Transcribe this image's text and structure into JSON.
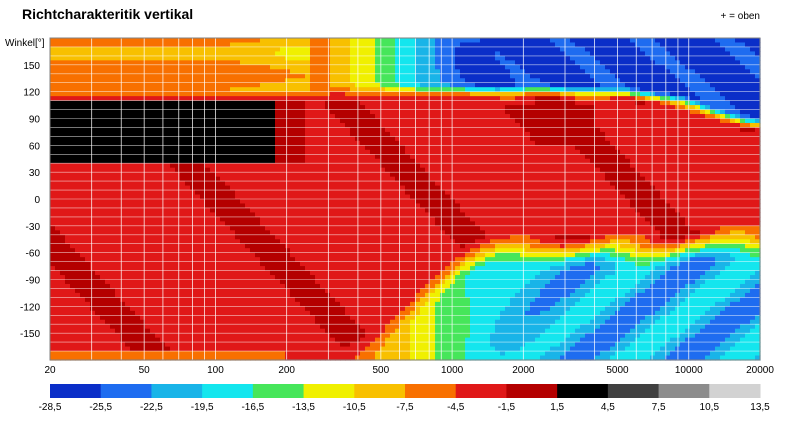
{
  "chart_data": {
    "type": "heatmap",
    "title": "Richtcharakteritik vertikal",
    "note": "+ = oben",
    "xlabel": "",
    "ylabel": "Winkel[°]",
    "x_scale": "log",
    "xlim": [
      20,
      20000
    ],
    "ylim": [
      -180,
      180
    ],
    "x_ticks": [
      "20",
      "50",
      "100",
      "200",
      "500",
      "1000",
      "2000",
      "5000",
      "10000",
      "20000"
    ],
    "y_ticks": [
      "150",
      "120",
      "90",
      "60",
      "30",
      "0",
      "-30",
      "-60",
      "-90",
      "-120",
      "-150"
    ],
    "y_tick_values": [
      150,
      120,
      90,
      60,
      30,
      0,
      -30,
      -60,
      -90,
      -120,
      -150
    ],
    "grid": true,
    "colorbar": {
      "boundaries": [
        "-28,5",
        "-25,5",
        "-22,5",
        "-19,5",
        "-16,5",
        "-13,5",
        "-10,5",
        "-7,5",
        "-4,5",
        "-1,5",
        "1,5",
        "4,5",
        "7,5",
        "10,5",
        "13,5"
      ],
      "colors": [
        "#0a2ec8",
        "#1e6cf0",
        "#19b4e8",
        "#14e6ee",
        "#46e65a",
        "#f0f000",
        "#f8c000",
        "#f87000",
        "#e01818",
        "#b40000",
        "#000000",
        "#404040",
        "#8c8c8c",
        "#d2d2d2"
      ]
    },
    "regions_description_level_db": {
      "low_freq_20_to_200hz": {
        "angle_120_to_180": -7.5,
        "angle_40_to_110": 3.0,
        "angle_minus180_to_40": -3.0,
        "lower_edge": -6.0
      },
      "mid_500_to_2000hz": {
        "angle_minus60_to_110": -2.5,
        "angle_120_to_180": -24.0,
        "angle_minus180_to_minus90": -17.0
      },
      "high_5000_to_20000hz": {
        "angle_minus30_to_100": -2.5,
        "angle_120_to_180": -27.0,
        "angle_minus180_to_minus120": -20.0
      }
    }
  }
}
